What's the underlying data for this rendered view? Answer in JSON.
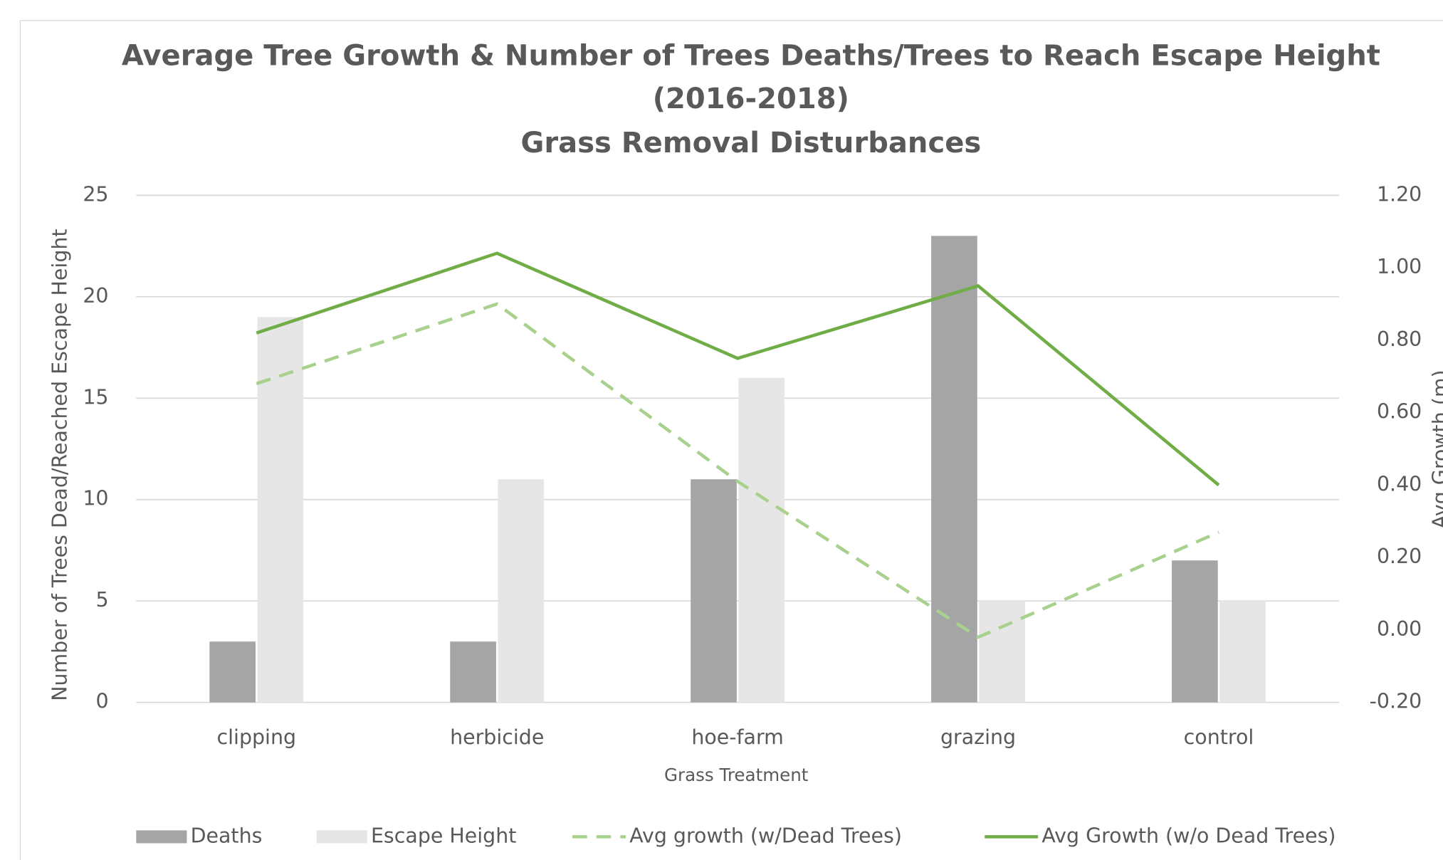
{
  "chart_data": {
    "type": "bar-line",
    "title": [
      "Average Tree Growth & Number of Trees Deaths/Trees to Reach Escape Height",
      "(2016-2018)"
    ],
    "subtitle": "Grass Removal Disturbances",
    "x_label": "Grass Treatment",
    "y_label": "Number of Trees Dead/Reached Escape Height",
    "y2_label": "Avg Growth (m)",
    "categories": [
      "clipping",
      "herbicide",
      "hoe-farm",
      "grazing",
      "control"
    ],
    "series": [
      {
        "name": "Deaths",
        "type": "bar",
        "color": "#a5a5a5",
        "values": [
          3,
          3,
          11,
          23,
          7
        ]
      },
      {
        "name": "Escape Height",
        "type": "bar",
        "color": "#e7e6e6",
        "values": [
          19,
          11,
          16,
          5,
          5
        ]
      },
      {
        "name": "Avg growth (w/Dead Trees)",
        "type": "line",
        "dashed": true,
        "axis": "y2",
        "color": "#a9d18e",
        "values": [
          0.68,
          0.9,
          0.41,
          -0.02,
          0.27
        ]
      },
      {
        "name": "Avg Growth (w/o Dead Trees)",
        "type": "line",
        "dashed": false,
        "axis": "y2",
        "color": "#70ad47",
        "values": [
          0.82,
          1.04,
          0.75,
          0.95,
          0.4
        ]
      }
    ],
    "ylim": [
      0,
      25
    ],
    "yticks": [
      0,
      5,
      10,
      15,
      20,
      25
    ],
    "y2lim": [
      -0.2,
      1.2
    ],
    "y2ticks": [
      {
        "value": -0.2,
        "label": "-0.20"
      },
      {
        "value": 0,
        "label": "0.00"
      },
      {
        "value": 0.2,
        "label": "0.20"
      },
      {
        "value": 0.4,
        "label": "0.40"
      },
      {
        "value": 0.6,
        "label": "0.60"
      },
      {
        "value": 0.8,
        "label": "0.80"
      },
      {
        "value": 1.0,
        "label": "1.00"
      },
      {
        "value": 1.2,
        "label": "1.20"
      }
    ],
    "grid": true,
    "legend": "bottom"
  }
}
